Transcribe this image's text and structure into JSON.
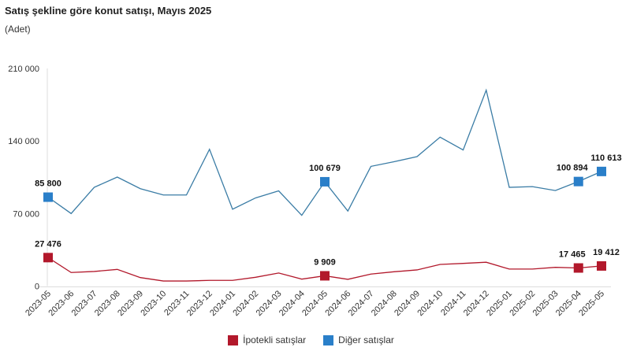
{
  "chart_data": {
    "type": "line",
    "title": "Satış şekline göre konut satışı, Mayıs 2025",
    "subtitle": "(Adet)",
    "ylim": [
      0,
      210000
    ],
    "yticks": [
      0,
      70000,
      140000,
      210000
    ],
    "ytick_labels": [
      "0",
      "70 000",
      "140 000",
      "210 000"
    ],
    "grid": false,
    "legend": "bottom",
    "categories": [
      "2023-05",
      "2023-06",
      "2023-07",
      "2023-08",
      "2023-09",
      "2023-10",
      "2023-11",
      "2023-12",
      "2024-01",
      "2024-02",
      "2024-03",
      "2024-04",
      "2024-05",
      "2024-06",
      "2024-07",
      "2024-08",
      "2024-09",
      "2024-10",
      "2024-11",
      "2024-12",
      "2025-01",
      "2025-02",
      "2025-03",
      "2025-04",
      "2025-05"
    ],
    "series": [
      {
        "name": "İpotekli satışlar",
        "color": "#b2182b",
        "values": [
          27476,
          13100,
          14100,
          16100,
          8200,
          4900,
          4900,
          5500,
          5500,
          8500,
          12600,
          6700,
          9909,
          6500,
          11600,
          13800,
          15600,
          20900,
          21900,
          23000,
          16400,
          16400,
          18100,
          17465,
          19412
        ],
        "labels": {
          "0": "27 476",
          "12": "9 909",
          "23": "17 465",
          "24": "19 412"
        }
      },
      {
        "name": "Diğer satışlar",
        "color": "#2a7fc9",
        "line_color": "#3a7ca5",
        "values": [
          85800,
          70000,
          95300,
          105200,
          94000,
          87900,
          87900,
          132000,
          74200,
          85100,
          91900,
          68300,
          100679,
          72400,
          115500,
          120000,
          124900,
          143700,
          131300,
          189100,
          95300,
          96000,
          92200,
          100894,
          110613
        ],
        "labels": {
          "0": "85 800",
          "12": "100 679",
          "23": "100 894",
          "24": "110 613"
        }
      }
    ]
  }
}
